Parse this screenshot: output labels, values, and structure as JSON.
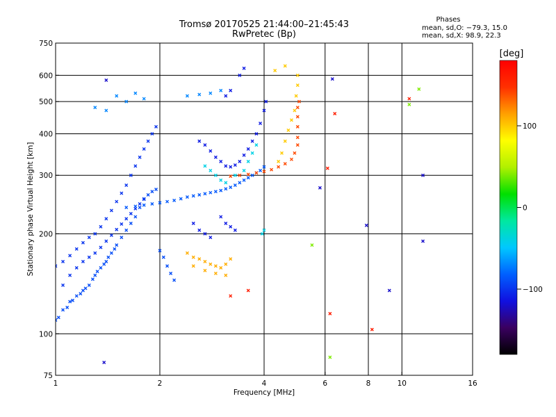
{
  "chart_data": {
    "type": "scatter",
    "title": "Tromsø 20170525 21:44:00–21:45:43",
    "subtitle": "RwPretec (Bp)",
    "xlabel": "Frequency [MHz]",
    "ylabel": "Stationary phase Virtual Height [km]",
    "x_scale": "log",
    "y_scale": "log",
    "xlim": [
      1,
      16
    ],
    "ylim": [
      75,
      750
    ],
    "x_ticks": [
      1,
      2,
      4,
      6,
      8,
      10,
      16
    ],
    "x_tick_labels": [
      "1",
      "2",
      "4",
      "6",
      "8",
      "10",
      "16"
    ],
    "x_gridlines": [
      2,
      4,
      6,
      8,
      10
    ],
    "y_ticks": [
      75,
      100,
      200,
      300,
      400,
      500,
      600,
      750
    ],
    "y_tick_labels": [
      "75",
      "100",
      "200",
      "300",
      "400",
      "500",
      "600",
      "750"
    ],
    "y_gridlines": [
      100,
      200,
      300,
      400,
      500,
      600
    ],
    "grid": true,
    "stats": {
      "heading": "Phases",
      "line_o": "mean, sd,O: −79.3, 15.0",
      "line_x": "mean, sd,X:  98.9, 22.3"
    },
    "colorbar": {
      "label": "[deg]",
      "range": [
        -180,
        180
      ],
      "tick_values": [
        -100,
        0,
        100
      ],
      "tick_labels": [
        "−100",
        "0",
        "100"
      ],
      "colors": [
        "#000000",
        "#3a0060",
        "#1010e0",
        "#0060ff",
        "#00c8ff",
        "#00e8a0",
        "#00e000",
        "#b0f000",
        "#ffff00",
        "#ffa000",
        "#ff3000",
        "#ff0000"
      ]
    },
    "series": [
      {
        "phase": -90,
        "points": [
          [
            1.0,
            110
          ],
          [
            1.05,
            118
          ],
          [
            1.1,
            125
          ],
          [
            1.15,
            130
          ],
          [
            1.2,
            135
          ],
          [
            1.25,
            140
          ],
          [
            1.3,
            150
          ],
          [
            1.35,
            158
          ],
          [
            1.4,
            165
          ],
          [
            1.45,
            175
          ],
          [
            1.5,
            185
          ],
          [
            1.55,
            195
          ],
          [
            1.6,
            205
          ],
          [
            1.65,
            215
          ],
          [
            1.7,
            225
          ],
          [
            1.75,
            240
          ],
          [
            1.8,
            255
          ],
          [
            1.85,
            262
          ],
          [
            1.9,
            268
          ],
          [
            1.95,
            272
          ],
          [
            2.0,
            178
          ],
          [
            2.05,
            170
          ],
          [
            2.1,
            160
          ],
          [
            2.15,
            152
          ],
          [
            2.2,
            145
          ],
          [
            1.02,
            112
          ],
          [
            1.08,
            120
          ],
          [
            1.12,
            126
          ],
          [
            1.18,
            132
          ],
          [
            1.22,
            137
          ],
          [
            1.28,
            146
          ],
          [
            1.32,
            154
          ],
          [
            1.38,
            162
          ],
          [
            1.42,
            170
          ],
          [
            1.48,
            180
          ]
        ]
      },
      {
        "phase": -100,
        "points": [
          [
            1.0,
            160
          ],
          [
            1.05,
            165
          ],
          [
            1.1,
            172
          ],
          [
            1.15,
            180
          ],
          [
            1.2,
            188
          ],
          [
            1.25,
            195
          ],
          [
            1.3,
            200
          ],
          [
            1.35,
            210
          ],
          [
            1.4,
            222
          ],
          [
            1.45,
            235
          ],
          [
            1.5,
            250
          ],
          [
            1.55,
            265
          ],
          [
            1.6,
            280
          ],
          [
            1.65,
            300
          ],
          [
            1.7,
            320
          ],
          [
            1.75,
            340
          ],
          [
            1.8,
            360
          ],
          [
            1.85,
            380
          ],
          [
            1.9,
            400
          ],
          [
            1.95,
            420
          ],
          [
            1.05,
            140
          ],
          [
            1.1,
            150
          ],
          [
            1.15,
            158
          ],
          [
            1.2,
            165
          ],
          [
            1.25,
            170
          ],
          [
            1.3,
            175
          ],
          [
            1.35,
            182
          ],
          [
            1.4,
            190
          ],
          [
            1.45,
            198
          ],
          [
            1.5,
            206
          ],
          [
            1.55,
            214
          ],
          [
            1.6,
            222
          ],
          [
            1.65,
            230
          ],
          [
            1.7,
            238
          ],
          [
            1.75,
            246
          ],
          [
            1.8,
            254
          ]
        ]
      },
      {
        "phase": -85,
        "points": [
          [
            1.6,
            240
          ],
          [
            1.7,
            242
          ],
          [
            1.8,
            244
          ],
          [
            1.9,
            246
          ],
          [
            2.0,
            248
          ],
          [
            2.1,
            250
          ],
          [
            2.2,
            252
          ],
          [
            2.3,
            255
          ],
          [
            2.4,
            258
          ],
          [
            2.5,
            260
          ],
          [
            2.6,
            262
          ],
          [
            2.7,
            264
          ],
          [
            2.8,
            266
          ],
          [
            2.9,
            268
          ],
          [
            3.0,
            270
          ],
          [
            3.1,
            273
          ],
          [
            3.2,
            276
          ],
          [
            3.3,
            280
          ],
          [
            3.4,
            285
          ],
          [
            3.5,
            290
          ],
          [
            3.6,
            295
          ],
          [
            3.7,
            300
          ],
          [
            3.8,
            305
          ],
          [
            3.9,
            310
          ],
          [
            4.0,
            318
          ]
        ]
      },
      {
        "phase": -110,
        "points": [
          [
            2.6,
            380
          ],
          [
            2.7,
            370
          ],
          [
            2.8,
            355
          ],
          [
            2.9,
            340
          ],
          [
            3.0,
            330
          ],
          [
            3.1,
            320
          ],
          [
            3.2,
            318
          ],
          [
            3.3,
            322
          ],
          [
            3.4,
            330
          ],
          [
            3.5,
            345
          ],
          [
            3.6,
            360
          ],
          [
            3.7,
            380
          ],
          [
            3.8,
            400
          ],
          [
            3.9,
            430
          ],
          [
            4.0,
            470
          ],
          [
            4.05,
            500
          ],
          [
            3.0,
            225
          ],
          [
            3.1,
            215
          ],
          [
            3.2,
            210
          ],
          [
            3.3,
            205
          ],
          [
            2.5,
            215
          ],
          [
            2.6,
            205
          ],
          [
            2.7,
            200
          ],
          [
            2.8,
            195
          ],
          [
            3.1,
            520
          ],
          [
            3.2,
            540
          ],
          [
            3.4,
            600
          ],
          [
            3.5,
            630
          ]
        ]
      },
      {
        "phase": -70,
        "points": [
          [
            1.3,
            480
          ],
          [
            1.4,
            470
          ],
          [
            1.5,
            520
          ],
          [
            1.6,
            500
          ],
          [
            1.7,
            530
          ],
          [
            1.8,
            510
          ],
          [
            2.4,
            520
          ],
          [
            2.6,
            525
          ],
          [
            2.8,
            530
          ],
          [
            3.0,
            540
          ]
        ]
      },
      {
        "phase": -40,
        "points": [
          [
            2.7,
            320
          ],
          [
            2.8,
            310
          ],
          [
            2.9,
            300
          ],
          [
            3.0,
            290
          ],
          [
            3.1,
            285
          ],
          [
            3.3,
            300
          ],
          [
            3.5,
            310
          ],
          [
            3.6,
            330
          ],
          [
            3.7,
            350
          ],
          [
            3.8,
            370
          ],
          [
            3.95,
            200
          ],
          [
            4.0,
            205
          ]
        ]
      },
      {
        "phase": 110,
        "points": [
          [
            2.4,
            175
          ],
          [
            2.5,
            170
          ],
          [
            2.6,
            168
          ],
          [
            2.7,
            165
          ],
          [
            2.8,
            162
          ],
          [
            2.9,
            160
          ],
          [
            3.0,
            158
          ],
          [
            3.1,
            162
          ],
          [
            3.2,
            168
          ],
          [
            2.5,
            160
          ],
          [
            2.7,
            155
          ],
          [
            2.9,
            152
          ],
          [
            3.1,
            150
          ]
        ]
      },
      {
        "phase": 140,
        "points": [
          [
            3.2,
            298
          ],
          [
            3.4,
            300
          ],
          [
            3.6,
            302
          ],
          [
            3.8,
            305
          ],
          [
            4.0,
            308
          ],
          [
            4.2,
            312
          ],
          [
            4.4,
            318
          ],
          [
            4.6,
            325
          ],
          [
            4.8,
            335
          ],
          [
            4.9,
            350
          ],
          [
            5.0,
            370
          ],
          [
            5.0,
            390
          ],
          [
            5.0,
            420
          ],
          [
            5.0,
            450
          ],
          [
            5.0,
            480
          ],
          [
            5.05,
            500
          ]
        ]
      },
      {
        "phase": 100,
        "points": [
          [
            4.4,
            330
          ],
          [
            4.5,
            350
          ],
          [
            4.6,
            380
          ],
          [
            4.7,
            410
          ],
          [
            4.8,
            440
          ],
          [
            4.9,
            470
          ],
          [
            4.95,
            520
          ],
          [
            5.0,
            560
          ],
          [
            5.0,
            600
          ],
          [
            4.3,
            620
          ],
          [
            4.6,
            640
          ]
        ]
      },
      {
        "phase": 160,
        "points": [
          [
            6.1,
            315
          ],
          [
            6.4,
            460
          ],
          [
            6.2,
            115
          ],
          [
            8.2,
            103
          ],
          [
            10.5,
            510
          ],
          [
            3.2,
            130
          ],
          [
            3.6,
            135
          ]
        ]
      },
      {
        "phase": -120,
        "points": [
          [
            6.3,
            585
          ],
          [
            5.8,
            275
          ],
          [
            7.9,
            212
          ],
          [
            9.2,
            135
          ],
          [
            11.5,
            300
          ],
          [
            11.5,
            190
          ],
          [
            1.4,
            580
          ],
          [
            1.38,
            82
          ]
        ]
      },
      {
        "phase": 40,
        "points": [
          [
            6.2,
            85
          ],
          [
            10.5,
            490
          ],
          [
            11.2,
            545
          ],
          [
            5.5,
            185
          ]
        ]
      }
    ]
  }
}
